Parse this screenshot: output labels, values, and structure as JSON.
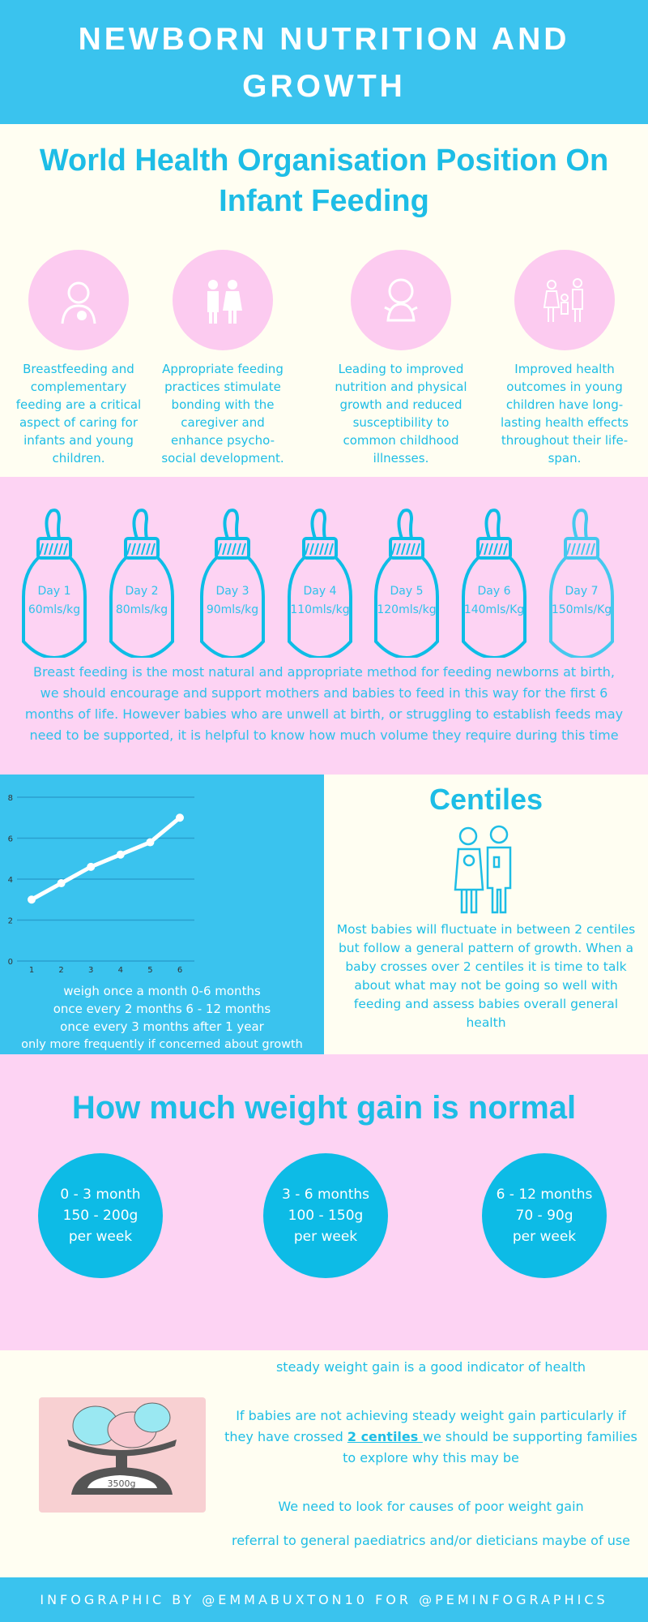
{
  "header": {
    "title": "NEWBORN NUTRITION AND GROWTH"
  },
  "who": {
    "title": "World Health Organisation Position On Infant Feeding",
    "items": [
      {
        "icon": "breastfeeding-mother-icon",
        "text": "Breastfeeding and complementary feeding are a critical aspect of caring for infants and young children."
      },
      {
        "icon": "parents-icon",
        "text": "Appropriate feeding practices stimulate bonding with the caregiver and enhance psycho-social development."
      },
      {
        "icon": "baby-icon",
        "text": "Leading to improved nutrition and physical growth and reduced susceptibility to common childhood illnesses."
      },
      {
        "icon": "family-icon",
        "text": "Improved health outcomes in young children have long-lasting health effects throughout their life-span."
      }
    ]
  },
  "bottles": {
    "items": [
      {
        "day": "Day 1",
        "volume": "60mls/kg"
      },
      {
        "day": "Day 2",
        "volume": "80mls/kg"
      },
      {
        "day": "Day 3",
        "volume": "90mls/kg"
      },
      {
        "day": "Day 4",
        "volume": "110mls/kg"
      },
      {
        "day": "Day 5",
        "volume": "120mls/kg"
      },
      {
        "day": "Day  6",
        "volume": "140mls/Kg"
      },
      {
        "day": "Day 7",
        "volume": "150mls/Kg"
      }
    ],
    "text": "Breast feeding is the most natural and appropriate method for feeding newborns at birth, we should encourage and support mothers and babies to feed in this way for the first 6 months of life. However babies who are unwell at birth, or struggling to establish feeds may need to be supported, it is helpful to know how much volume they require during this time"
  },
  "chart_data": {
    "type": "line",
    "x": [
      1,
      2,
      3,
      4,
      5,
      6
    ],
    "values": [
      3,
      3.8,
      4.6,
      5.2,
      5.8,
      7
    ],
    "ylim": [
      0,
      8
    ],
    "yticks": [
      "0",
      "2",
      "4",
      "6",
      "8"
    ],
    "xticks": [
      "1",
      "2",
      "3",
      "4",
      "5",
      "6"
    ],
    "grid": true,
    "color": "#ffffff"
  },
  "weighing": {
    "lines": [
      "weigh once a month 0-6 months",
      "once every 2 months 6 - 12 months",
      "once every 3 months after 1 year",
      "only more frequently if concerned about growth"
    ]
  },
  "centiles": {
    "title": "Centiles",
    "icon": "parents-with-baby-icon",
    "text": "Most babies will fluctuate in between 2 centiles but follow a general pattern of growth. When a baby crosses over 2 centiles it is time to talk about what may not be going so well with feeding and assess babies overall general health"
  },
  "weight_gain": {
    "title": "How much weight gain is normal",
    "items": [
      {
        "age": "0 - 3 month",
        "gain": "150 - 200g",
        "unit": "per week"
      },
      {
        "age": "3 - 6 months",
        "gain": "100 - 150g",
        "unit": "per week"
      },
      {
        "age": "6 - 12 months",
        "gain": "70 - 90g",
        "unit": "per week"
      }
    ]
  },
  "tips": {
    "image_label": "3500g",
    "line1": "steady weight gain is a good indicator of health",
    "line2a": "If babies are not achieving steady weight gain particularly if they have crossed ",
    "line2link": "2 centiles ",
    "line2b": "we should be supporting families to explore why this may be",
    "line3": "We need to look for causes of poor weight gain",
    "line4": "referral to general paediatrics and/or dieticians maybe of use"
  },
  "footer": {
    "text": "INFOGRAPHIC BY @EMMABUXTON10 FOR @PEMINFOGRAPHICS"
  },
  "colors": {
    "blue": "#3ac3ee",
    "pink": "#fdd3f3",
    "cream": "#fffef2",
    "text_blue": "#1dbde6"
  }
}
